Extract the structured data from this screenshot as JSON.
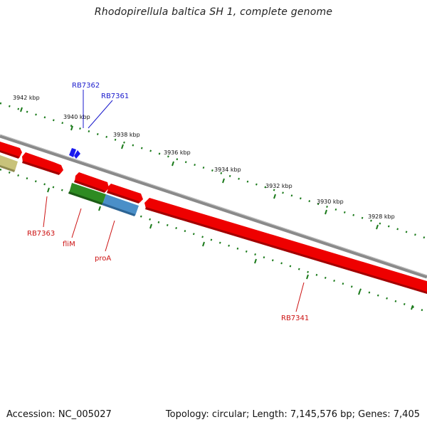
{
  "title": "Rhodopirellula baltica SH 1, complete genome",
  "footer": {
    "accession": "Accession: NC_005027",
    "summary": "Topology: circular; Length: 7,145,576 bp; Genes: 7,405"
  },
  "ruler_labels": [
    "3942 kbp",
    "3940 kbp",
    "3938 kbp",
    "3936 kbp",
    "3934 kbp",
    "3932 kbp",
    "3930 kbp",
    "3928 kbp"
  ],
  "gene_labels": {
    "rb7362": "RB7362",
    "rb7361": "RB7361",
    "rb7363": "RB7363",
    "flim": "fliM",
    "proa": "proA",
    "rb7341": "RB7341"
  },
  "colors": {
    "backbone": "#8a8a8a",
    "gene_red": "#ee0000",
    "gene_green": "#2e8b22",
    "gene_blue": "#4a8fc8",
    "gene_olive": "#c8c27a",
    "tick_green": "#1a7a1a",
    "label_blue": "#1a1acc",
    "label_red": "#cc1111"
  }
}
